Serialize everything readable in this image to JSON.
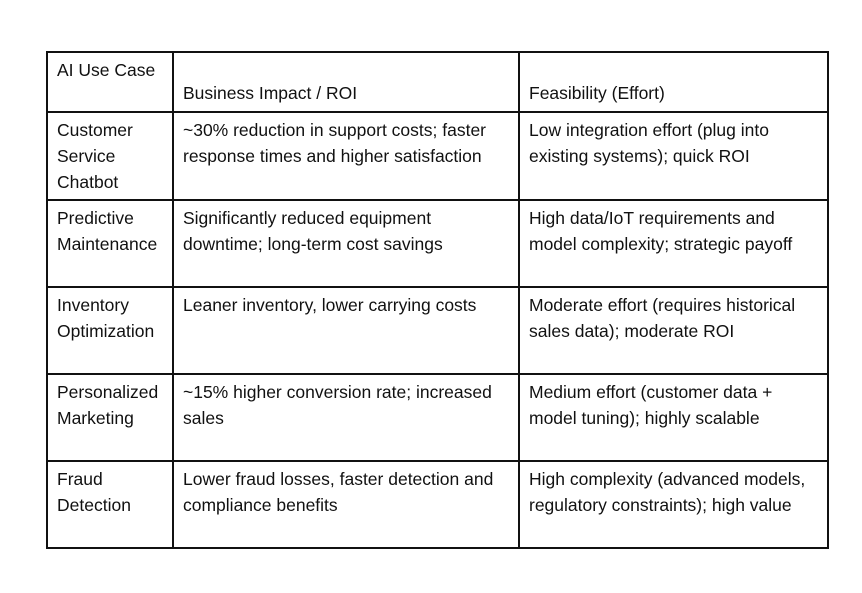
{
  "table": {
    "headers": [
      "AI Use Case",
      "Business Impact / ROI",
      "Feasibility (Effort)"
    ],
    "rows": [
      {
        "use_case": "Customer Service Chatbot",
        "impact": "~30% reduction in support costs; faster response times and higher satisfaction",
        "feasibility": "Low integration effort (plug into existing systems); quick ROI"
      },
      {
        "use_case": "Predictive Maintenance",
        "impact": "Significantly reduced equipment downtime; long-term cost savings",
        "feasibility": "High data/IoT requirements and model complexity; strategic payoff"
      },
      {
        "use_case": "Inventory Optimization",
        "impact": "Leaner inventory, lower carrying costs",
        "feasibility": "Moderate effort (requires historical sales data); moderate ROI"
      },
      {
        "use_case": "Personalized Marketing",
        "impact": "~15% higher conversion rate; increased sales",
        "feasibility": "Medium effort (customer data + model tuning); highly scalable"
      },
      {
        "use_case": "Fraud Detection",
        "impact": "Lower fraud losses, faster detection and compliance benefits",
        "feasibility": "High complexity (advanced models, regulatory constraints); high value"
      }
    ]
  }
}
